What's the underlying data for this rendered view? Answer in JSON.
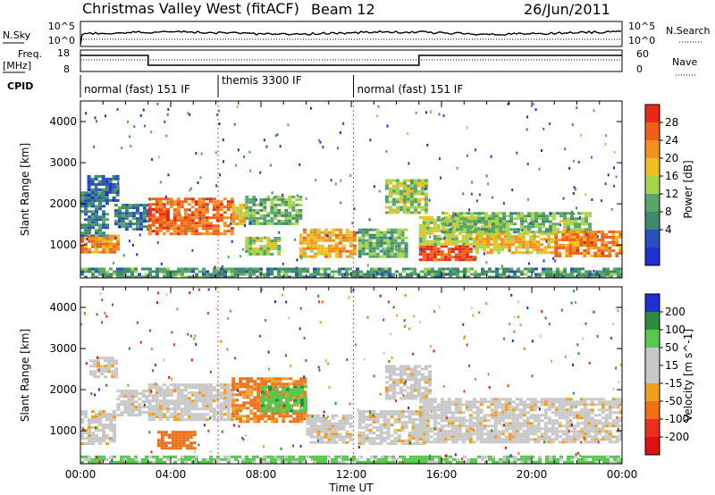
{
  "header": {
    "title": "Christmas Valley West (fitACF)",
    "beam": "Beam 12",
    "date": "26/Jun/2011"
  },
  "noise_panel": {
    "left_label": "N.Sky",
    "left_ticks": [
      "10^5",
      "10^0"
    ],
    "right_ticks": [
      "10^5",
      "10^0"
    ],
    "right_label": "N.Search"
  },
  "freq_panel": {
    "left_label_line1": "Freq.",
    "left_label_line2": "[MHz]",
    "left_ticks": [
      "18",
      "8"
    ],
    "right_ticks": [
      "60",
      "0"
    ],
    "right_label": "Nave"
  },
  "cpid_panel": {
    "label": "CPID",
    "modes": [
      {
        "text": "normal (fast) 151 IF",
        "start_hour": 0,
        "end_hour": 6.1
      },
      {
        "text": "themis 3300 IF",
        "start_hour": 6.1,
        "end_hour": 12.1
      },
      {
        "text": "normal (fast) 151 IF",
        "start_hour": 12.1,
        "end_hour": 24
      }
    ]
  },
  "colors": {
    "power": [
      "#1f2fd4",
      "#2850b8",
      "#3f8a6e",
      "#5aa66a",
      "#a6d44f",
      "#f0c020",
      "#f39020",
      "#f06018",
      "#e82818"
    ],
    "velocity": [
      "#2030d0",
      "#2f8a40",
      "#5ac850",
      "#c8c8c8",
      "#c8c8c8",
      "#f0a020",
      "#f07018",
      "#e83020",
      "#e01010"
    ]
  },
  "chart_data": [
    {
      "type": "heatmap",
      "title": "",
      "xlabel": "",
      "ylabel": "Slant Range [km]",
      "xlim": [
        0,
        24
      ],
      "ylim": [
        200,
        4500
      ],
      "yticks": [
        "1000",
        "2000",
        "3000",
        "4000"
      ],
      "colorbar": {
        "label": "Power [dB]",
        "ticks": [
          "4",
          "8",
          "12",
          "16",
          "20",
          "24",
          "28"
        ],
        "range": [
          0,
          30
        ]
      },
      "regions": [
        {
          "t0": 0.0,
          "t1": 1.7,
          "r0": 800,
          "r1": 1250,
          "value": 22
        },
        {
          "t0": 0.0,
          "t1": 1.2,
          "r0": 1250,
          "r1": 2300,
          "value": 8
        },
        {
          "t0": 0.3,
          "t1": 1.6,
          "r0": 2100,
          "r1": 2700,
          "value": 6
        },
        {
          "t0": 1.5,
          "t1": 3.0,
          "r0": 1400,
          "r1": 2000,
          "value": 7
        },
        {
          "t0": 3.0,
          "t1": 6.7,
          "r0": 1300,
          "r1": 2150,
          "value": 24
        },
        {
          "t0": 3.0,
          "t1": 3.8,
          "r0": 1400,
          "r1": 1900,
          "value": 27
        },
        {
          "t0": 6.7,
          "t1": 7.3,
          "r0": 1500,
          "r1": 2000,
          "value": 18
        },
        {
          "t0": 7.3,
          "t1": 9.7,
          "r0": 1500,
          "r1": 2200,
          "value": 12
        },
        {
          "t0": 7.3,
          "t1": 8.8,
          "r0": 800,
          "r1": 1200,
          "value": 14
        },
        {
          "t0": 9.7,
          "t1": 12.1,
          "r0": 700,
          "r1": 1400,
          "value": 20
        },
        {
          "t0": 12.3,
          "t1": 14.5,
          "r0": 700,
          "r1": 1400,
          "value": 12
        },
        {
          "t0": 13.5,
          "t1": 15.3,
          "r0": 1800,
          "r1": 2600,
          "value": 14
        },
        {
          "t0": 15.0,
          "t1": 17.5,
          "r0": 650,
          "r1": 1000,
          "value": 27
        },
        {
          "t0": 15.0,
          "t1": 18.5,
          "r0": 1000,
          "r1": 1700,
          "value": 16
        },
        {
          "t0": 16.0,
          "t1": 22.5,
          "r0": 1300,
          "r1": 1800,
          "value": 13
        },
        {
          "t0": 17.5,
          "t1": 21.0,
          "r0": 800,
          "r1": 1300,
          "value": 19
        },
        {
          "t0": 21.0,
          "t1": 24.0,
          "r0": 700,
          "r1": 1350,
          "value": 23
        },
        {
          "t0": 0.0,
          "t1": 24.0,
          "r0": 200,
          "r1": 450,
          "value": 10
        }
      ]
    },
    {
      "type": "heatmap",
      "title": "",
      "xlabel": "Time UT",
      "ylabel": "Slant Range [km]",
      "xlim": [
        0,
        24
      ],
      "ylim": [
        200,
        4500
      ],
      "xticks": [
        "00:00",
        "04:00",
        "08:00",
        "12:00",
        "16:00",
        "20:00",
        "00:00"
      ],
      "yticks": [
        "1000",
        "2000",
        "3000",
        "4000"
      ],
      "colorbar": {
        "label": "Velocity [m s^-1]",
        "ticks": [
          "200",
          "100",
          "50",
          "15",
          "-15",
          "-50",
          "-100",
          "-200"
        ],
        "range": [
          -250,
          250
        ]
      },
      "regions": [
        {
          "t0": 0.0,
          "t1": 1.5,
          "r0": 700,
          "r1": 1500,
          "value": 0
        },
        {
          "t0": 0.4,
          "t1": 1.6,
          "r0": 2300,
          "r1": 2800,
          "value": 0
        },
        {
          "t0": 1.6,
          "t1": 3.0,
          "r0": 1400,
          "r1": 2000,
          "value": 0
        },
        {
          "t0": 3.0,
          "t1": 6.7,
          "r0": 1300,
          "r1": 2150,
          "value": 0
        },
        {
          "t0": 3.4,
          "t1": 5.0,
          "r0": 600,
          "r1": 1000,
          "value": -80
        },
        {
          "t0": 6.7,
          "t1": 10.0,
          "r0": 1200,
          "r1": 2300,
          "value": -60
        },
        {
          "t0": 8.0,
          "t1": 10.0,
          "r0": 1500,
          "r1": 2100,
          "value": 60
        },
        {
          "t0": 10.0,
          "t1": 12.0,
          "r0": 700,
          "r1": 1400,
          "value": 0
        },
        {
          "t0": 12.3,
          "t1": 15.3,
          "r0": 700,
          "r1": 1500,
          "value": 0
        },
        {
          "t0": 13.5,
          "t1": 15.5,
          "r0": 1800,
          "r1": 2600,
          "value": 0
        },
        {
          "t0": 15.0,
          "t1": 24.0,
          "r0": 700,
          "r1": 1800,
          "value": 0
        },
        {
          "t0": 0.0,
          "t1": 24.0,
          "r0": 200,
          "r1": 400,
          "value": 40
        }
      ]
    }
  ]
}
